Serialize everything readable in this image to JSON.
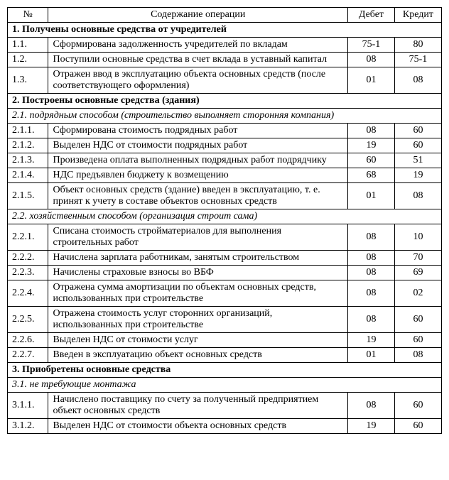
{
  "header": {
    "num": "№",
    "operation": "Содержание операции",
    "debit": "Дебет",
    "credit": "Кредит"
  },
  "rows": [
    {
      "type": "section",
      "text": "1. Получены основные средства от учредителей"
    },
    {
      "type": "row",
      "num": "1.1.",
      "op": "Сформирована задолженность учредителей по вкладам",
      "deb": "75-1",
      "cred": "80"
    },
    {
      "type": "row",
      "num": "1.2.",
      "op": "Поступили основные средства в счет вклада в уставный капитал",
      "deb": "08",
      "cred": "75-1"
    },
    {
      "type": "row",
      "num": "1.3.",
      "op": "Отражен ввод в эксплуатацию объекта основных средств (после соответствующего оформления)",
      "deb": "01",
      "cred": "08"
    },
    {
      "type": "section",
      "text": "2. Построены основные средства (здания)"
    },
    {
      "type": "subsection",
      "text": "2.1. подрядным способом (строительство выполняет сторонняя компания)"
    },
    {
      "type": "row",
      "num": "2.1.1.",
      "op": "Сформирована стоимость подрядных работ",
      "deb": "08",
      "cred": "60"
    },
    {
      "type": "row",
      "num": "2.1.2.",
      "op": "Выделен НДС от стоимости подрядных работ",
      "deb": "19",
      "cred": "60"
    },
    {
      "type": "row",
      "num": "2.1.3.",
      "op": "Произведена оплата выполненных подрядных работ подрядчику",
      "deb": "60",
      "cred": "51"
    },
    {
      "type": "row",
      "num": "2.1.4.",
      "op": "НДС предъявлен бюджету к возмещению",
      "deb": "68",
      "cred": "19"
    },
    {
      "type": "row",
      "num": "2.1.5.",
      "op": "Объект основных средств (здание) введен в эксплуатацию, т. е. принят к учету в составе объектов основных средств",
      "deb": "01",
      "cred": "08"
    },
    {
      "type": "subsection",
      "text": "2.2. хозяйственным способом (организация строит сама)"
    },
    {
      "type": "row",
      "num": "2.2.1.",
      "op": "Списана стоимость стройматериалов для выполнения строительных работ",
      "deb": "08",
      "cred": "10"
    },
    {
      "type": "row",
      "num": "2.2.2.",
      "op": "Начислена зарплата работникам, занятым строительством",
      "deb": "08",
      "cred": "70"
    },
    {
      "type": "row",
      "num": "2.2.3.",
      "op": "Начислены страховые взносы во ВБФ",
      "deb": "08",
      "cred": "69"
    },
    {
      "type": "row",
      "num": "2.2.4.",
      "op": "Отражена сумма амортизации по объектам основных средств, использованных при строительстве",
      "deb": "08",
      "cred": "02"
    },
    {
      "type": "row",
      "num": "2.2.5.",
      "op": "Отражена стоимость услуг сторонних организаций, использованных при строительстве",
      "deb": "08",
      "cred": "60"
    },
    {
      "type": "row",
      "num": "2.2.6.",
      "op": "Выделен НДС от стоимости услуг",
      "deb": "19",
      "cred": "60"
    },
    {
      "type": "row",
      "num": "2.2.7.",
      "op": "Введен в эксплуатацию объект основных средств",
      "deb": "01",
      "cred": "08"
    },
    {
      "type": "section",
      "text": "3. Приобретены основные средства"
    },
    {
      "type": "subsection",
      "text": "3.1. не требующие монтажа"
    },
    {
      "type": "row",
      "num": "3.1.1.",
      "op": "Начислено поставщику по счету за полученный предприятием объект основных средств",
      "deb": "08",
      "cred": "60"
    },
    {
      "type": "row",
      "num": "3.1.2.",
      "op": "Выделен НДС от стоимости объекта основных средств",
      "deb": "19",
      "cred": "60"
    }
  ],
  "style": {
    "fontFamily": "Times New Roman",
    "fontSize": 14,
    "border": "#000000",
    "background": "#ffffff"
  }
}
